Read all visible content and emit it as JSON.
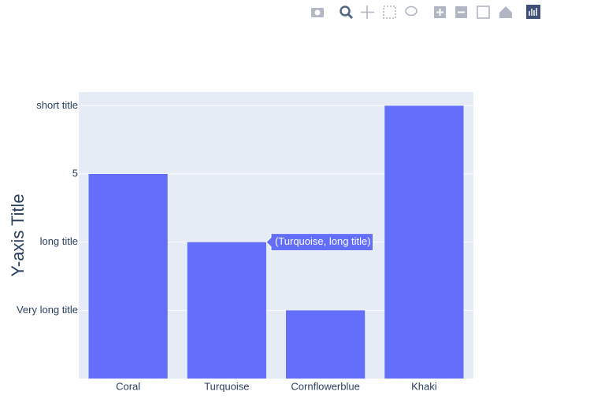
{
  "chart_data": {
    "type": "bar",
    "y_axis_title": "Y-axis Title",
    "categories": [
      "Coral",
      "Turquoise",
      "Cornflowerblue",
      "Khaki"
    ],
    "values": [
      5,
      4,
      3,
      6
    ],
    "color": "#636efa",
    "ylim": [
      2,
      6.2
    ],
    "yticks": [
      {
        "value": 3,
        "label": "Very long title"
      },
      {
        "value": 4,
        "label": "long title"
      },
      5,
      {
        "value": 6,
        "label": "short title"
      }
    ],
    "grid": true,
    "tooltip": "(Turquoise, long title)"
  }
}
